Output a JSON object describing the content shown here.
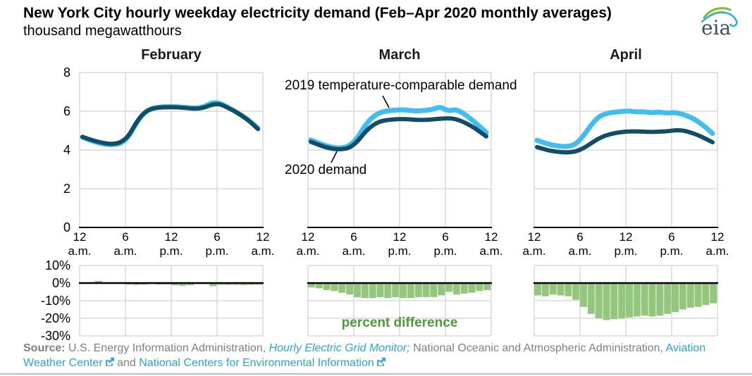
{
  "header": {
    "title": "New York City hourly weekday electricity demand (Feb–Apr 2020 monthly averages)",
    "subtitle": "thousand megawatthours",
    "logo_text": "eia"
  },
  "annotations": {
    "label_2019": "2019 temperature-comparable demand",
    "label_2020": "2020 demand",
    "percent_label": "percent difference"
  },
  "colors": {
    "demand_2019": "#41beef",
    "demand_2020": "#124d66",
    "bar_green": "#94c67d",
    "green_label": "#4f9a3a",
    "gridline": "#d9d9d9",
    "axis_black": "#000000",
    "link_blue": "#2aa3da",
    "source_gray": "#808080",
    "bottom_rule": "#a9c6d6",
    "logo_green": "#76bf43",
    "logo_yellow": "#ffd24f",
    "logo_blue": "#2aabe2",
    "logo_text": "#3a4f5c"
  },
  "chart_data": {
    "type": "line+bar",
    "title": "New York City hourly weekday electricity demand (Feb–Apr 2020 monthly averages)",
    "ylabel": "thousand megawatthours",
    "hours": [
      0,
      1,
      2,
      3,
      4,
      5,
      6,
      7,
      8,
      9,
      10,
      11,
      12,
      13,
      14,
      15,
      16,
      17,
      18,
      19,
      20,
      21,
      22,
      23
    ],
    "x_ticklabels": [
      [
        "12",
        "a.m."
      ],
      [
        "6",
        "a.m."
      ],
      [
        "12",
        "p.m."
      ],
      [
        "6",
        "p.m."
      ],
      [
        "12",
        "a.m."
      ]
    ],
    "top_ylim": [
      0,
      8
    ],
    "top_yticks": [
      {
        "label": "8",
        "value": 8
      },
      {
        "label": "6",
        "value": 6
      },
      {
        "label": "4",
        "value": 4
      },
      {
        "label": "2",
        "value": 2
      },
      {
        "label": "0",
        "value": 0
      }
    ],
    "pct_ylim": [
      -30,
      10
    ],
    "pct_yticks": [
      {
        "label": "10%",
        "value": 10
      },
      {
        "label": "0%",
        "value": 0
      },
      {
        "label": "-10%",
        "value": -10
      },
      {
        "label": "-20%",
        "value": -20
      },
      {
        "label": "-30%",
        "value": -30
      }
    ],
    "series_names": [
      "2019 temperature-comparable demand",
      "2020 demand",
      "percent difference"
    ],
    "grid": true,
    "legend_position": "annotated",
    "panels": [
      {
        "month": "February",
        "y2019": [
          4.66,
          4.5,
          4.38,
          4.29,
          4.27,
          4.33,
          4.64,
          5.35,
          5.89,
          6.14,
          6.22,
          6.24,
          6.24,
          6.21,
          6.18,
          6.16,
          6.24,
          6.46,
          6.42,
          6.22,
          6.0,
          5.76,
          5.47,
          5.12
        ],
        "y2020": [
          4.68,
          4.54,
          4.43,
          4.34,
          4.31,
          4.39,
          4.69,
          5.4,
          5.91,
          6.13,
          6.19,
          6.21,
          6.21,
          6.19,
          6.15,
          6.13,
          6.19,
          6.35,
          6.38,
          6.19,
          5.99,
          5.74,
          5.45,
          5.08
        ],
        "pct": [
          0.0,
          0.3,
          1.2,
          0.4,
          0.0,
          -0.2,
          -0.8,
          -1.0,
          -0.9,
          -0.5,
          -0.8,
          -0.8,
          -1.2,
          -1.5,
          -1.2,
          -0.5,
          -0.6,
          -1.8,
          -0.9,
          -1.0,
          -1.0,
          -1.1,
          -1.0,
          -0.9
        ]
      },
      {
        "month": "March",
        "y2019": [
          4.52,
          4.36,
          4.22,
          4.12,
          4.1,
          4.2,
          4.55,
          5.2,
          5.68,
          5.92,
          6.02,
          6.06,
          6.08,
          6.04,
          6.02,
          6.04,
          6.1,
          6.24,
          6.0,
          6.1,
          5.9,
          5.6,
          5.25,
          4.9
        ],
        "y2020": [
          4.42,
          4.27,
          4.13,
          4.05,
          4.03,
          4.1,
          4.38,
          4.88,
          5.25,
          5.47,
          5.55,
          5.58,
          5.6,
          5.58,
          5.55,
          5.55,
          5.58,
          5.62,
          5.64,
          5.6,
          5.45,
          5.25,
          4.98,
          4.7
        ],
        "pct": [
          -2.5,
          -3.0,
          -4.0,
          -4.5,
          -5.5,
          -6.5,
          -8.0,
          -8.5,
          -8.5,
          -8.0,
          -8.5,
          -8.0,
          -8.5,
          -8.5,
          -8.0,
          -8.0,
          -8.0,
          -7.0,
          -5.0,
          -6.5,
          -6.0,
          -5.5,
          -4.5,
          -4.0
        ]
      },
      {
        "month": "April",
        "y2019": [
          4.5,
          4.36,
          4.25,
          4.19,
          4.17,
          4.28,
          4.68,
          5.25,
          5.7,
          5.88,
          5.95,
          5.98,
          6.02,
          5.96,
          5.98,
          5.92,
          5.96,
          5.9,
          5.95,
          5.85,
          5.72,
          5.5,
          5.2,
          4.85
        ],
        "y2020": [
          4.15,
          4.03,
          3.94,
          3.89,
          3.87,
          3.91,
          4.07,
          4.32,
          4.58,
          4.75,
          4.86,
          4.92,
          4.96,
          4.96,
          4.95,
          4.93,
          4.95,
          4.96,
          5.02,
          5.02,
          4.92,
          4.78,
          4.6,
          4.4
        ],
        "pct": [
          -7.0,
          -7.5,
          -6.5,
          -7.0,
          -7.5,
          -9.5,
          -13.5,
          -17.5,
          -20.0,
          -21.0,
          -20.5,
          -20.0,
          -19.5,
          -19.0,
          -18.5,
          -19.0,
          -18.5,
          -17.5,
          -16.5,
          -15.0,
          -14.0,
          -13.5,
          -12.5,
          -11.5
        ]
      }
    ]
  },
  "source": {
    "prefix": "Source:",
    "part1": " U.S. Energy Information Administration, ",
    "link1": "Hourly Electric Grid Monitor",
    "punct1": ";",
    "part2": " National Oceanic and Atmospheric Administration, ",
    "link2": "Aviation Weather Center",
    "part3": " and ",
    "link3": "National Centers for Environmental Information"
  }
}
